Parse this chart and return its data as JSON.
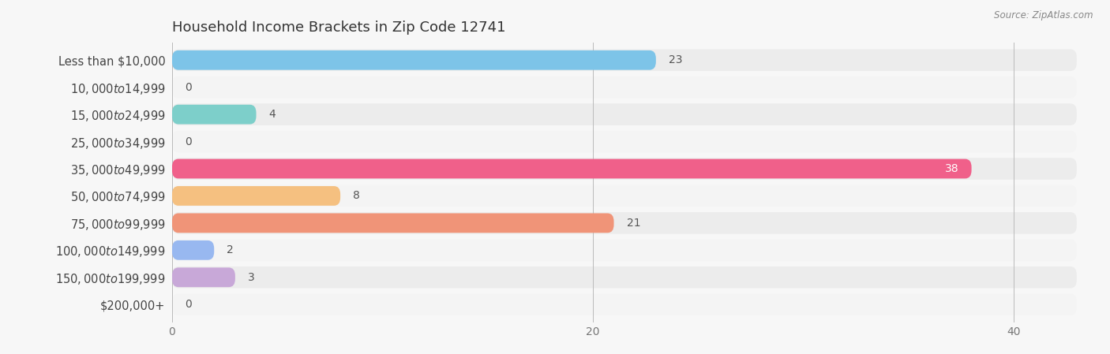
{
  "title": "Household Income Brackets in Zip Code 12741",
  "source": "Source: ZipAtlas.com",
  "categories": [
    "Less than $10,000",
    "$10,000 to $14,999",
    "$15,000 to $24,999",
    "$25,000 to $34,999",
    "$35,000 to $49,999",
    "$50,000 to $74,999",
    "$75,000 to $99,999",
    "$100,000 to $149,999",
    "$150,000 to $199,999",
    "$200,000+"
  ],
  "values": [
    23,
    0,
    4,
    0,
    38,
    8,
    21,
    2,
    3,
    0
  ],
  "bar_colors": [
    "#7dc4e8",
    "#c9a8d4",
    "#7dcfca",
    "#a8b4e8",
    "#f0608a",
    "#f5c080",
    "#f09478",
    "#98b8f0",
    "#c8a8d8",
    "#80ccd0"
  ],
  "value_label_colors": [
    "#555555",
    "#555555",
    "#555555",
    "#555555",
    "#ffffff",
    "#555555",
    "#555555",
    "#555555",
    "#555555",
    "#555555"
  ],
  "xlim": [
    0,
    43
  ],
  "xticks": [
    0,
    20,
    40
  ],
  "background_color": "#f7f7f7",
  "row_bg_colors": [
    "#ececec",
    "#f4f4f4"
  ],
  "bar_bg_color": "#e4e4e4",
  "title_fontsize": 13,
  "label_fontsize": 10.5,
  "value_fontsize": 10,
  "tick_fontsize": 10
}
